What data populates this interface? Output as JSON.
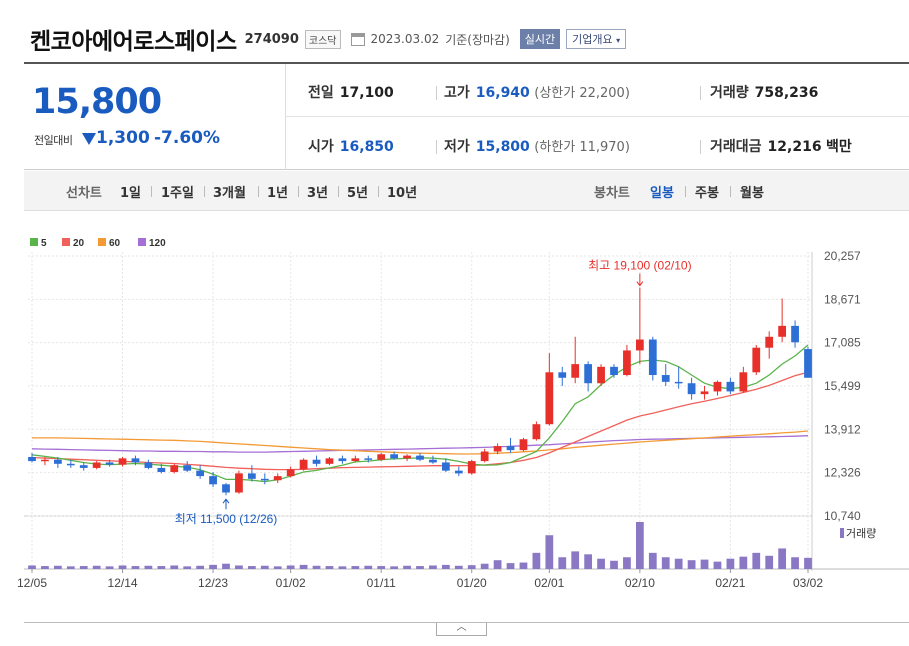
{
  "header": {
    "company": "켄코아에어로스페이스",
    "code": "274090",
    "market": "코스닥",
    "date": "2023.03.02",
    "basis": "기준(장마감)",
    "realtime_btn": "실시간",
    "company_btn": "기업개요"
  },
  "quote": {
    "price": "15,800",
    "change_label": "전일대비",
    "change": "1,300",
    "change_pct": "-7.60%",
    "prev_close_label": "전일",
    "prev_close": "17,100",
    "high_label": "고가",
    "high": "16,940",
    "upper_limit": "(상한가 22,200)",
    "volume_label": "거래량",
    "volume": "758,236",
    "open_label": "시가",
    "open": "16,850",
    "low_label": "저가",
    "low": "15,800",
    "lower_limit": "(하한가 11,970)",
    "amount_label": "거래대금",
    "amount": "12,216",
    "amount_unit": "백만"
  },
  "periods": {
    "line_label": "선차트",
    "line_items": [
      "1일",
      "1주일",
      "3개월",
      "1년",
      "3년",
      "5년",
      "10년"
    ],
    "candle_label": "봉차트",
    "candle_items": [
      "일봉",
      "주봉",
      "월봉"
    ],
    "selected": "일봉"
  },
  "chart_data": {
    "type": "candlestick",
    "legend": [
      "5",
      "20",
      "60",
      "120"
    ],
    "colors": {
      "up": "#e8302b",
      "down": "#2e6fd6",
      "ma5": "#5ab44b",
      "ma20": "#f2605a",
      "ma60": "#f39a34",
      "ma120": "#a56fd6",
      "volume": "#8a78c4"
    },
    "ylim": [
      10740,
      20257
    ],
    "y_ticks": [
      20257,
      18671,
      17085,
      15499,
      13912,
      12326,
      10740
    ],
    "x_ticks": [
      {
        "label": "12/05",
        "i": 0
      },
      {
        "label": "12/14",
        "i": 7
      },
      {
        "label": "12/23",
        "i": 14
      },
      {
        "label": "01/02",
        "i": 20
      },
      {
        "label": "01/11",
        "i": 27
      },
      {
        "label": "01/20",
        "i": 34
      },
      {
        "label": "02/01",
        "i": 40
      },
      {
        "label": "02/10",
        "i": 47
      },
      {
        "label": "02/21",
        "i": 54
      },
      {
        "label": "03/02",
        "i": 60
      }
    ],
    "annotations": {
      "high_text": "최고 19,100 (02/10)",
      "high_i": 47,
      "high_value": 19100,
      "low_text": "최저 11,500 (12/26)",
      "low_i": 15,
      "low_value": 11500
    },
    "volume_label": "거래량",
    "candles": [
      [
        12900,
        13050,
        12700,
        12750
      ],
      [
        12750,
        12900,
        12600,
        12800
      ],
      [
        12800,
        12900,
        12500,
        12650
      ],
      [
        12650,
        12800,
        12500,
        12600
      ],
      [
        12600,
        12700,
        12400,
        12500
      ],
      [
        12500,
        12750,
        12450,
        12700
      ],
      [
        12700,
        12800,
        12550,
        12620
      ],
      [
        12620,
        12900,
        12550,
        12850
      ],
      [
        12850,
        12950,
        12600,
        12700
      ],
      [
        12700,
        12800,
        12450,
        12500
      ],
      [
        12500,
        12650,
        12300,
        12350
      ],
      [
        12350,
        12650,
        12300,
        12600
      ],
      [
        12600,
        12750,
        12350,
        12400
      ],
      [
        12400,
        12600,
        12100,
        12200
      ],
      [
        12200,
        12350,
        11800,
        11900
      ],
      [
        11900,
        11950,
        11500,
        11600
      ],
      [
        11600,
        12400,
        11550,
        12300
      ],
      [
        12300,
        12600,
        12000,
        12100
      ],
      [
        12100,
        12300,
        11900,
        12050
      ],
      [
        12050,
        12300,
        11950,
        12200
      ],
      [
        12200,
        12550,
        12150,
        12450
      ],
      [
        12450,
        12850,
        12400,
        12800
      ],
      [
        12800,
        12950,
        12550,
        12650
      ],
      [
        12650,
        12900,
        12600,
        12850
      ],
      [
        12850,
        12950,
        12650,
        12750
      ],
      [
        12750,
        12950,
        12700,
        12850
      ],
      [
        12850,
        12950,
        12700,
        12800
      ],
      [
        12800,
        13050,
        12750,
        13000
      ],
      [
        13000,
        13100,
        12800,
        12850
      ],
      [
        12850,
        13000,
        12750,
        12950
      ],
      [
        12950,
        13050,
        12750,
        12800
      ],
      [
        12800,
        12950,
        12650,
        12700
      ],
      [
        12700,
        12850,
        12350,
        12400
      ],
      [
        12400,
        12550,
        12200,
        12300
      ],
      [
        12300,
        12800,
        12250,
        12750
      ],
      [
        12750,
        13200,
        12700,
        13100
      ],
      [
        13100,
        13400,
        13000,
        13300
      ],
      [
        13300,
        13600,
        13050,
        13150
      ],
      [
        13150,
        13600,
        13100,
        13550
      ],
      [
        13550,
        14200,
        13500,
        14100
      ],
      [
        14100,
        16700,
        14050,
        16000
      ],
      [
        16000,
        16200,
        15500,
        15800
      ],
      [
        15800,
        17300,
        15600,
        16300
      ],
      [
        16300,
        16400,
        15300,
        15600
      ],
      [
        15600,
        16300,
        15500,
        16200
      ],
      [
        16200,
        16300,
        15800,
        15900
      ],
      [
        15900,
        17000,
        15850,
        16800
      ],
      [
        16800,
        19100,
        16300,
        17200
      ],
      [
        17200,
        17300,
        15700,
        15900
      ],
      [
        15900,
        16300,
        15500,
        15650
      ],
      [
        15650,
        16200,
        15400,
        15600
      ],
      [
        15600,
        15800,
        15000,
        15200
      ],
      [
        15200,
        15500,
        15000,
        15300
      ],
      [
        15300,
        15700,
        15150,
        15650
      ],
      [
        15650,
        15800,
        15200,
        15300
      ],
      [
        15300,
        16200,
        15250,
        16000
      ],
      [
        16000,
        17000,
        15900,
        16900
      ],
      [
        16900,
        17500,
        16500,
        17300
      ],
      [
        17300,
        18700,
        17100,
        17700
      ],
      [
        17700,
        17900,
        16900,
        17100
      ],
      [
        16850,
        16940,
        15800,
        15800
      ]
    ],
    "volumes": [
      12,
      10,
      11,
      9,
      10,
      11,
      9,
      12,
      10,
      11,
      10,
      12,
      9,
      11,
      14,
      18,
      12,
      10,
      11,
      9,
      12,
      14,
      11,
      10,
      9,
      10,
      11,
      10,
      9,
      11,
      10,
      12,
      14,
      11,
      13,
      18,
      30,
      20,
      22,
      55,
      115,
      40,
      60,
      50,
      35,
      28,
      40,
      160,
      55,
      40,
      35,
      30,
      32,
      25,
      35,
      42,
      55,
      45,
      70,
      40,
      38
    ],
    "ma": {
      "ma5": [
        12980,
        12920,
        12860,
        12780,
        12700,
        12640,
        12620,
        12640,
        12660,
        12640,
        12600,
        12560,
        12530,
        12430,
        12270,
        12080,
        12080,
        12050,
        12000,
        12070,
        12200,
        12350,
        12410,
        12500,
        12600,
        12720,
        12750,
        12800,
        12830,
        12850,
        12870,
        12860,
        12820,
        12740,
        12640,
        12600,
        12610,
        12700,
        12900,
        13100,
        13600,
        14200,
        14850,
        15100,
        15550,
        15900,
        16200,
        16400,
        16450,
        16400,
        16200,
        15900,
        15600,
        15450,
        15400,
        15450,
        15600,
        15900,
        16300,
        16600,
        17000
      ],
      "ma20": [
        12880,
        12860,
        12840,
        12820,
        12800,
        12780,
        12760,
        12740,
        12720,
        12700,
        12680,
        12660,
        12630,
        12600,
        12560,
        12520,
        12490,
        12470,
        12450,
        12440,
        12440,
        12450,
        12470,
        12490,
        12510,
        12520,
        12530,
        12540,
        12550,
        12560,
        12570,
        12580,
        12580,
        12580,
        12590,
        12610,
        12650,
        12700,
        12780,
        12880,
        13050,
        13250,
        13450,
        13650,
        13850,
        14050,
        14250,
        14400,
        14500,
        14620,
        14740,
        14850,
        14940,
        15040,
        15150,
        15260,
        15380,
        15520,
        15700,
        15880,
        16000
      ],
      "ma60": [
        13600,
        13600,
        13600,
        13590,
        13580,
        13570,
        13560,
        13550,
        13540,
        13530,
        13520,
        13510,
        13490,
        13470,
        13440,
        13410,
        13380,
        13350,
        13320,
        13290,
        13260,
        13230,
        13200,
        13170,
        13150,
        13130,
        13110,
        13090,
        13070,
        13050,
        13040,
        13030,
        13020,
        13010,
        13010,
        13020,
        13040,
        13060,
        13090,
        13120,
        13160,
        13200,
        13250,
        13290,
        13330,
        13370,
        13410,
        13450,
        13480,
        13510,
        13540,
        13570,
        13600,
        13630,
        13660,
        13690,
        13720,
        13750,
        13780,
        13810,
        13850
      ],
      "ma120": [
        13200,
        13190,
        13180,
        13170,
        13160,
        13150,
        13140,
        13130,
        13120,
        13120,
        13110,
        13110,
        13100,
        13100,
        13090,
        13090,
        13080,
        13080,
        13080,
        13090,
        13100,
        13110,
        13120,
        13130,
        13140,
        13150,
        13160,
        13170,
        13180,
        13190,
        13200,
        13210,
        13220,
        13230,
        13240,
        13250,
        13270,
        13290,
        13310,
        13330,
        13350,
        13380,
        13410,
        13440,
        13470,
        13500,
        13520,
        13540,
        13550,
        13560,
        13570,
        13580,
        13590,
        13600,
        13610,
        13620,
        13630,
        13640,
        13650,
        13660,
        13680
      ]
    }
  }
}
